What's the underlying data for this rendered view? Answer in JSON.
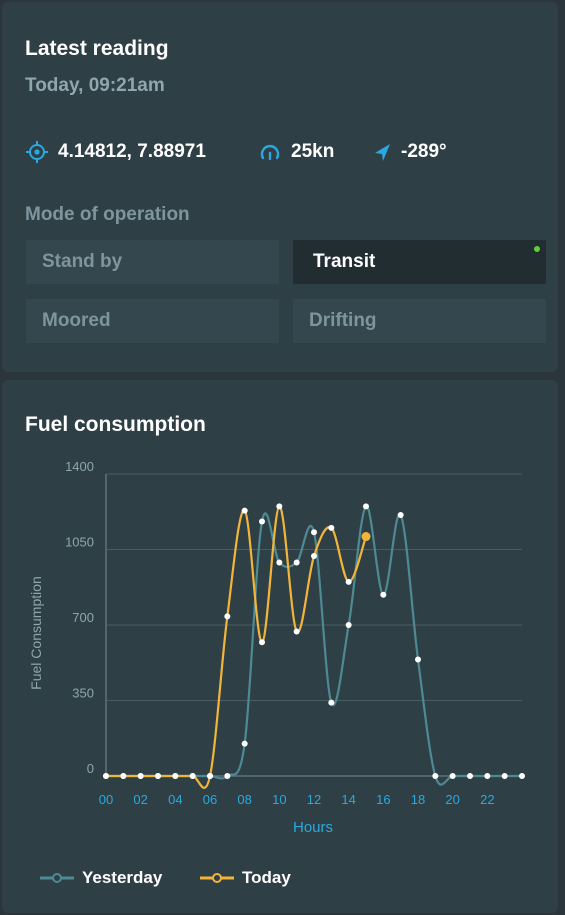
{
  "reading": {
    "title": "Latest reading",
    "time": "Today, 09:21am",
    "coords": "4.14812, 7.88971",
    "speed": "25kn",
    "heading": "-289°",
    "mode_label": "Mode of operation",
    "modes": [
      {
        "label": "Stand by",
        "active": false
      },
      {
        "label": "Transit",
        "active": true
      },
      {
        "label": "Moored",
        "active": false
      },
      {
        "label": "Drifting",
        "active": false
      }
    ],
    "icons": {
      "coords": "crosshair-icon",
      "speed": "gauge-icon",
      "heading": "navigation-arrow-icon"
    },
    "colors": {
      "accent": "#29a9e0",
      "active_dot": "#5bd12e"
    }
  },
  "fuel": {
    "title": "Fuel consumption",
    "legend": {
      "yesterday": "Yesterday",
      "today": "Today"
    }
  },
  "chart_data": {
    "type": "line",
    "title": "Fuel consumption",
    "xlabel": "Hours",
    "ylabel": "Fuel Consumption",
    "ylim": [
      0,
      1400
    ],
    "yticks": [
      0,
      350,
      700,
      1050,
      1400
    ],
    "xlim": [
      0,
      24
    ],
    "xticks": [
      "00",
      "02",
      "04",
      "06",
      "08",
      "10",
      "12",
      "14",
      "16",
      "18",
      "20",
      "22"
    ],
    "grid": true,
    "legend_position": "bottom-left",
    "series": [
      {
        "name": "Yesterday",
        "color": "#4e8a93",
        "x": [
          0,
          1,
          2,
          3,
          4,
          5,
          6,
          7,
          8,
          9,
          10,
          11,
          12,
          13,
          14,
          15,
          16,
          17,
          18,
          19,
          20,
          21,
          22,
          23,
          24
        ],
        "y": [
          0,
          0,
          0,
          0,
          0,
          0,
          0,
          0,
          150,
          1180,
          990,
          990,
          1130,
          340,
          700,
          1250,
          840,
          1210,
          540,
          0,
          0,
          0,
          0,
          0,
          0
        ]
      },
      {
        "name": "Today",
        "color": "#f2b53a",
        "x": [
          0,
          1,
          2,
          3,
          4,
          5,
          6,
          7,
          8,
          9,
          10,
          11,
          12,
          13,
          14,
          15
        ],
        "y": [
          0,
          0,
          0,
          0,
          0,
          0,
          0,
          740,
          1230,
          620,
          1250,
          670,
          1020,
          1150,
          900,
          1110
        ]
      }
    ]
  }
}
